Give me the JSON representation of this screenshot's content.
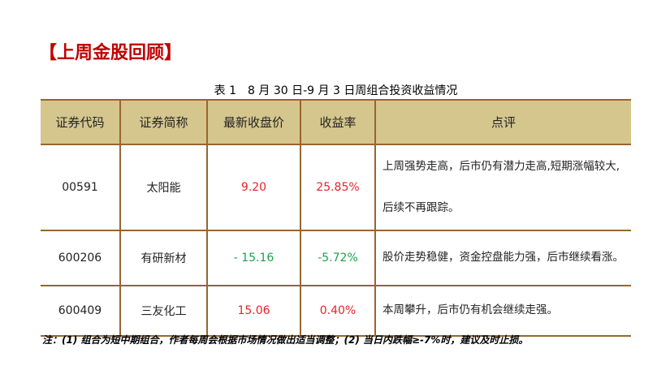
{
  "title": "【上周金股回顾】",
  "caption": "表 1　8 月 30 日-9 月 3 日周组合投资收益情况",
  "headers": [
    "证券代码",
    "证券简称",
    "最新收盘价",
    "收益率",
    "点评"
  ],
  "rows": [
    {
      "code": "00591",
      "name": "太阳能",
      "price": "9.20",
      "return": "25.85%",
      "comment": "上周强势走高，后市仍有潜力走高,短期涨幅较大,后续不再跟踪。"
    },
    {
      "code": "600206",
      "name": "有研新材",
      "price": "- 15.16",
      "return": "-5.72%",
      "comment": "股价走势稳健，资金控盘能力强，后市继续看涨。"
    },
    {
      "code": "600409",
      "name": "三友化工",
      "price": "15.06",
      "return": "0.40%",
      "comment": "本周攀升，后市仍有机会继续走强。"
    }
  ],
  "note": "注：(1) 组合为短中期组合，作者每周会根据市场情况做出适当调整；(2) 当日内跌幅≥-7%时，建议及时止损。",
  "colors": {
    "title": "#c00000",
    "header_bg": "#d5c68e",
    "border": "#96662e",
    "up": "#e8232a",
    "down": "#1e9f4a"
  }
}
